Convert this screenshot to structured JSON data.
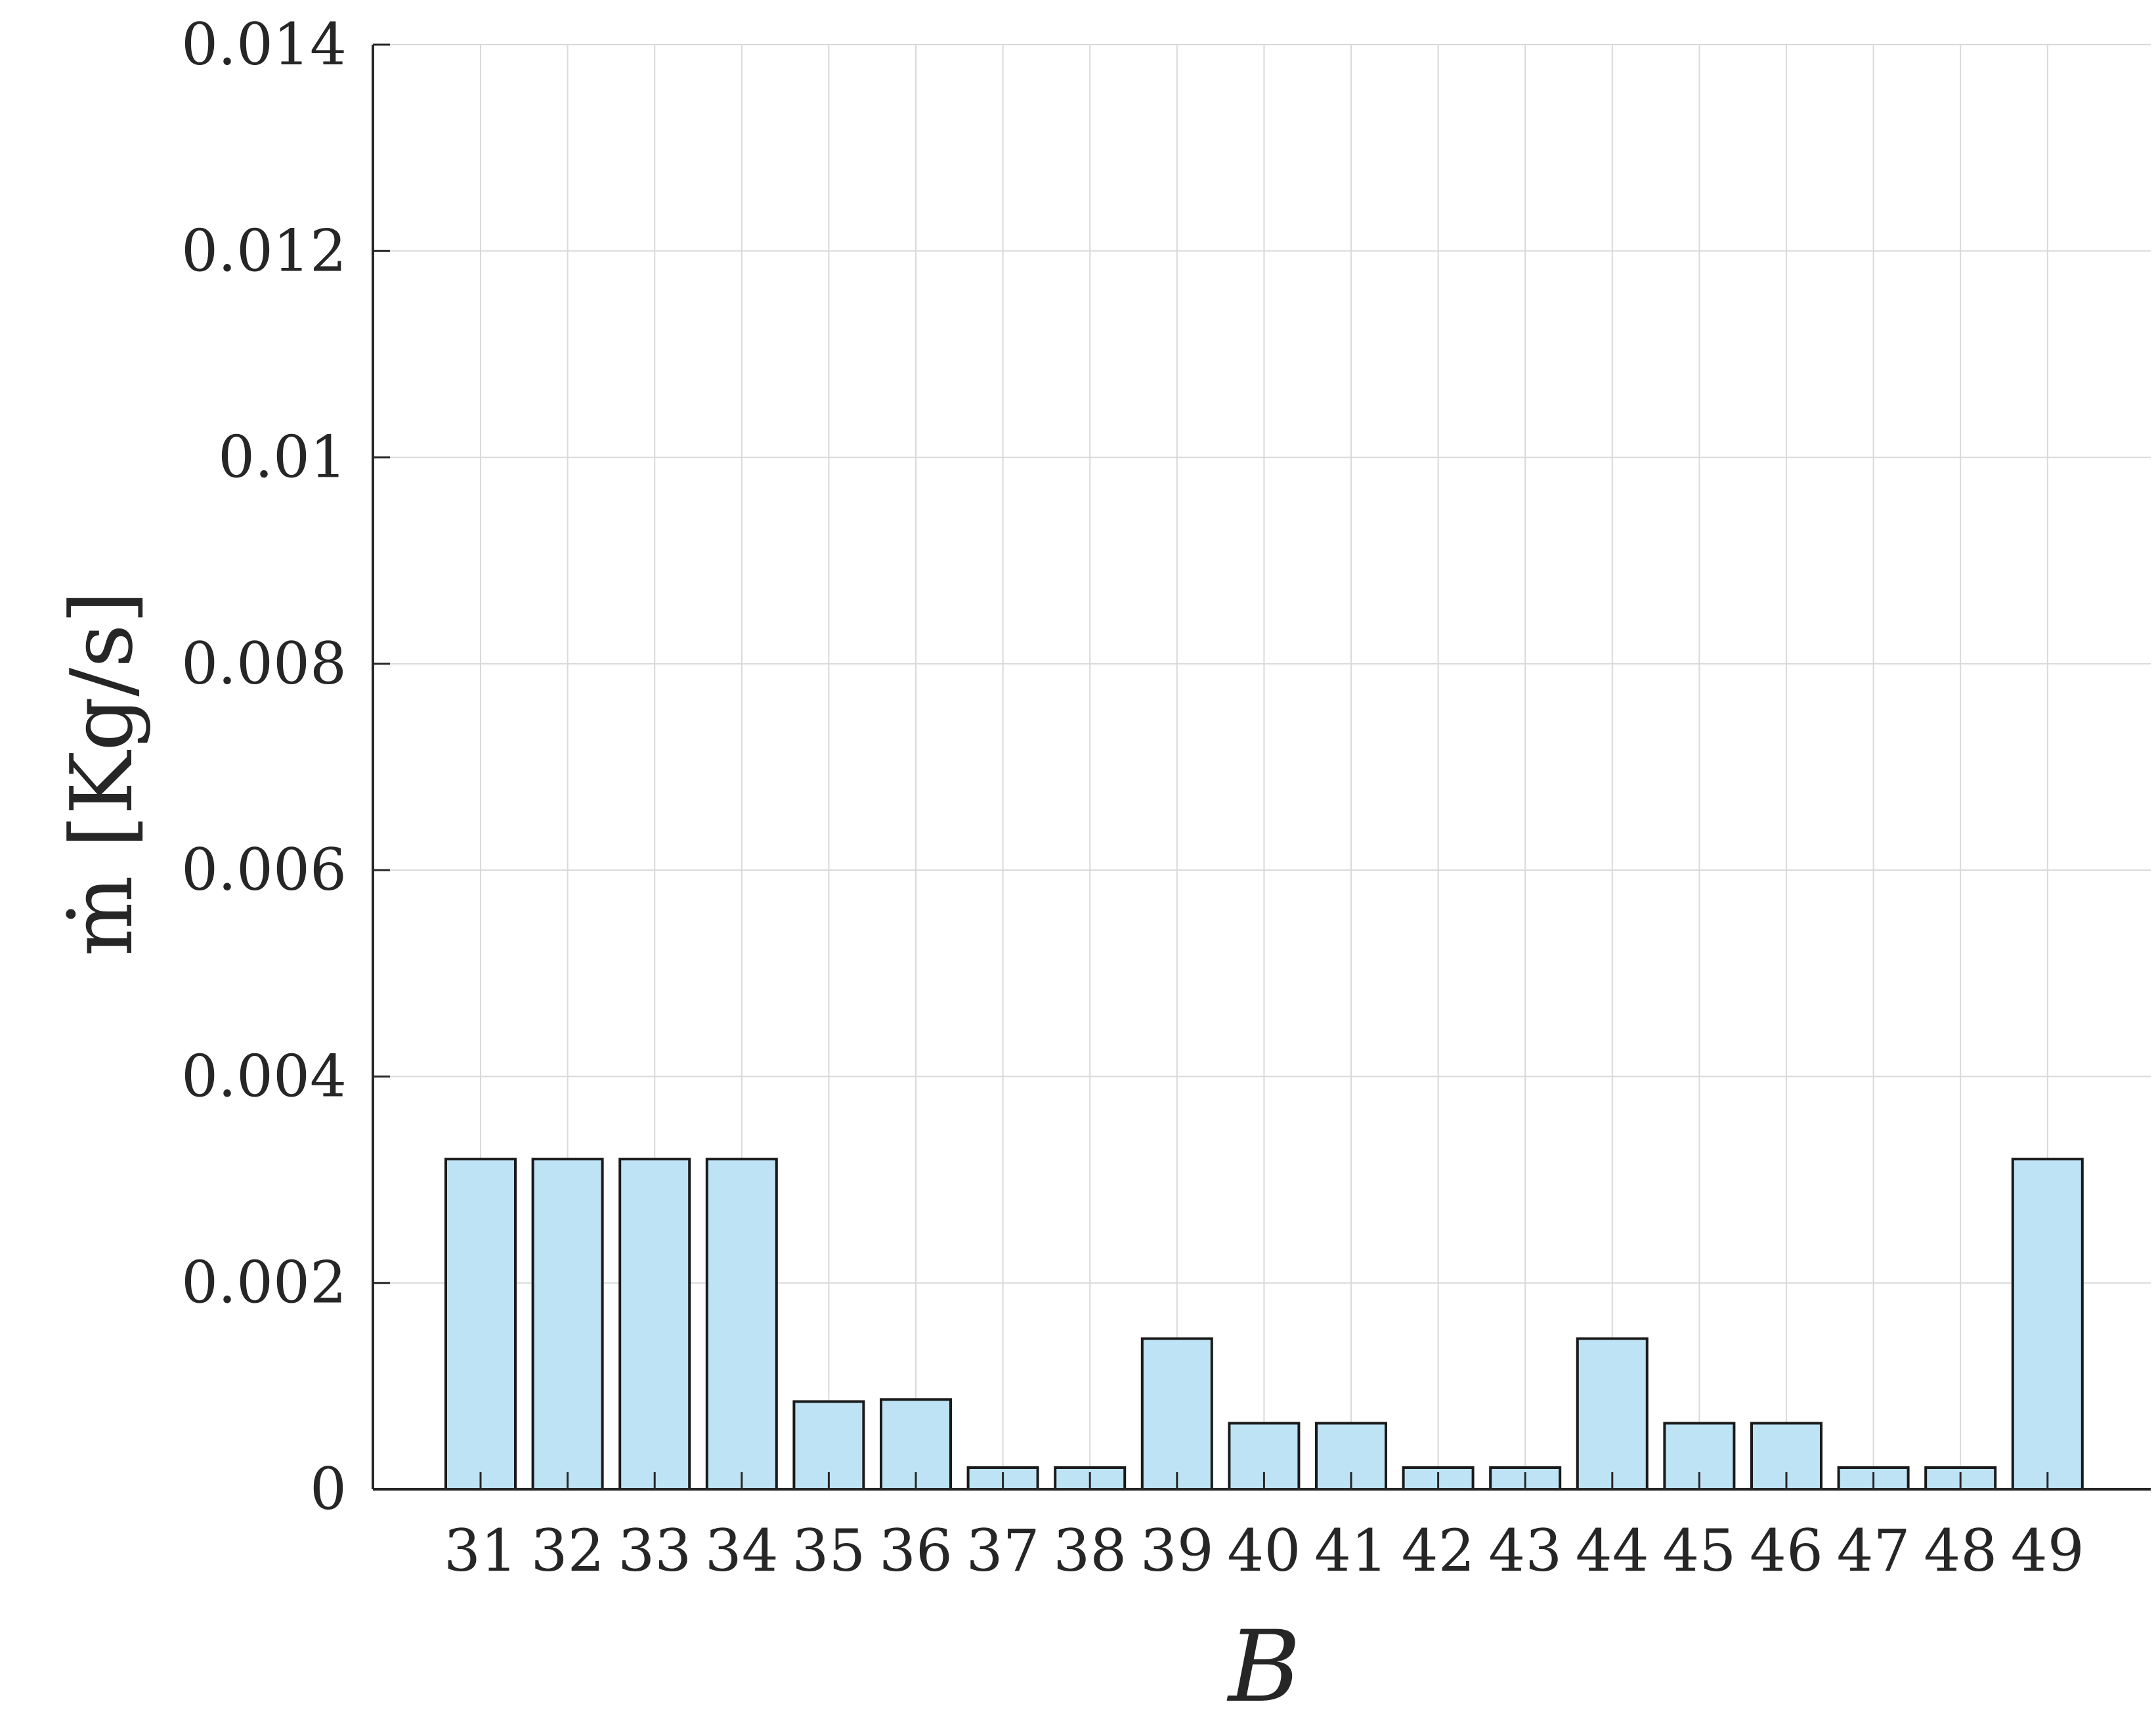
{
  "chart_data": {
    "type": "bar",
    "title": "",
    "xlabel": "B",
    "ylabel": "ṁ [Kg/s]",
    "categories": [
      "31",
      "32",
      "33",
      "34",
      "35",
      "36",
      "37",
      "38",
      "39",
      "40",
      "41",
      "42",
      "43",
      "44",
      "45",
      "46",
      "47",
      "48",
      "49"
    ],
    "values": [
      0.0032,
      0.0032,
      0.0032,
      0.0032,
      0.00085,
      0.00087,
      0.00021,
      0.00021,
      0.00146,
      0.00064,
      0.00064,
      0.00021,
      0.00021,
      0.00146,
      0.00064,
      0.00064,
      0.00021,
      0.00021,
      0.0032
    ],
    "ylim": [
      0,
      0.014
    ],
    "yticks": [
      "0",
      "0.002",
      "0.004",
      "0.006",
      "0.008",
      "0.01",
      "0.012",
      "0.014"
    ],
    "grid": true,
    "legend": "none",
    "colors": {
      "bar_fill": "#bde3f4",
      "bar_edge": "#1a1a1a",
      "axis": "#262626",
      "grid": "#d9d9d9"
    }
  }
}
